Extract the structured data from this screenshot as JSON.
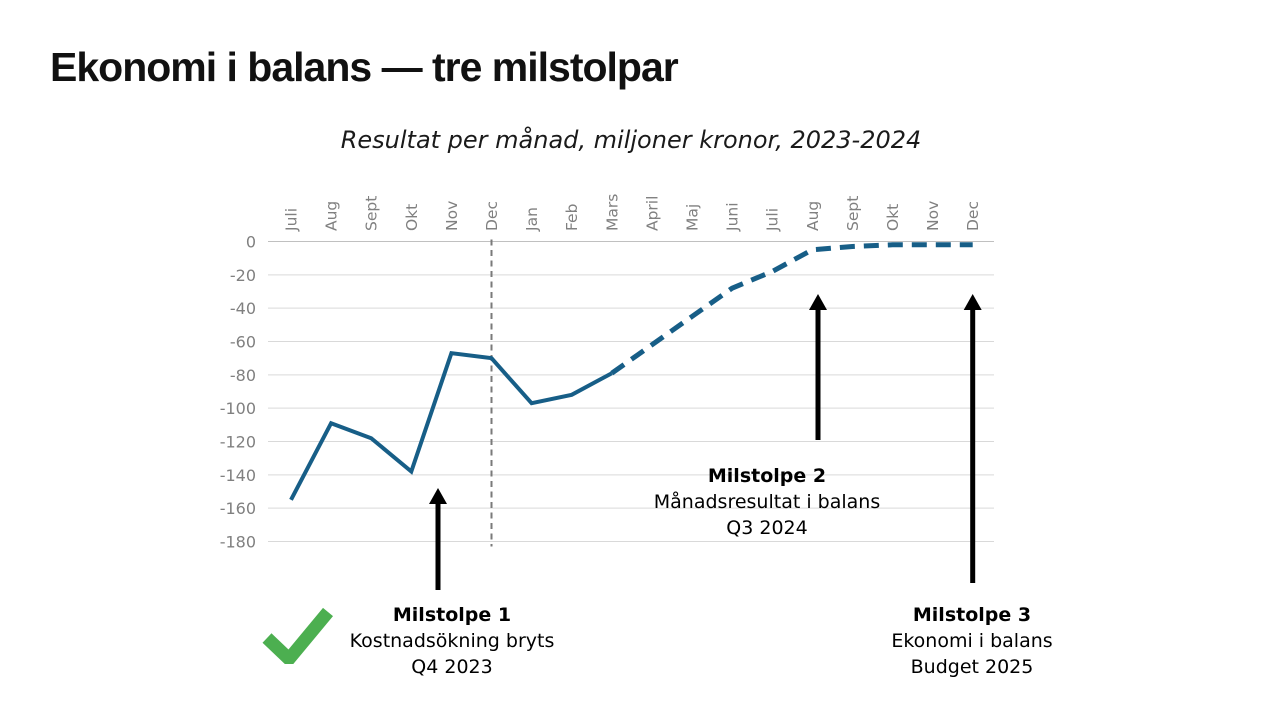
{
  "slide": {
    "title": "Ekonomi i balans —  tre milstolpar"
  },
  "chart_data": {
    "type": "line",
    "title": "Resultat per månad, miljoner kronor, 2023-2024",
    "categories": [
      "Juli",
      "Aug",
      "Sept",
      "Okt",
      "Nov",
      "Dec",
      "Jan",
      "Feb",
      "Mars",
      "April",
      "Maj",
      "Juni",
      "Juli",
      "Aug",
      "Sept",
      "Okt",
      "Nov",
      "Dec"
    ],
    "series": [
      {
        "name": "Resultat per månad",
        "values": [
          -155,
          -109,
          -118,
          -138,
          -67,
          -70,
          -97,
          -92,
          -79,
          -62,
          -45,
          -28,
          -18,
          -5,
          -3,
          -2,
          -2,
          -2
        ],
        "solid_through_index": 8
      }
    ],
    "ylim": [
      -180,
      0
    ],
    "yticks": [
      0,
      -20,
      -40,
      -60,
      -80,
      -100,
      -120,
      -140,
      -160,
      -180
    ],
    "grid": true,
    "legend": false,
    "divider_at_category_index": 5,
    "colors": {
      "line": "#175e87",
      "grid": "#d9d9d9",
      "zero_grid": "#c0c0c0",
      "axis_labels": "#808080",
      "divider": "#7a7a7a",
      "arrow": "#000000",
      "check": "#4caf50"
    }
  },
  "milestones": [
    {
      "name": "Milstolpe 1",
      "desc": "Kostnadsökning bryts",
      "period": "Q4 2023",
      "checked": true
    },
    {
      "name": "Milstolpe 2",
      "desc": "Månadsresultat i balans",
      "period": "Q3 2024",
      "checked": false
    },
    {
      "name": "Milstolpe 3",
      "desc": "Ekonomi i balans",
      "period": "Budget 2025",
      "checked": false
    }
  ]
}
